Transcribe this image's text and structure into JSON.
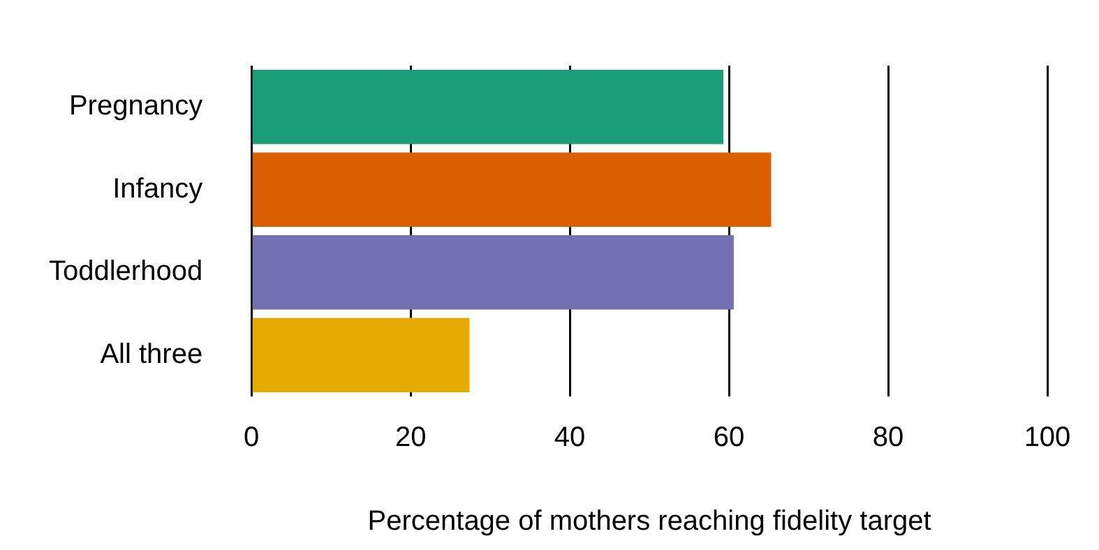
{
  "chart_data": {
    "type": "bar",
    "orientation": "horizontal",
    "categories": [
      "Pregnancy",
      "Infancy",
      "Toddlerhood",
      "All three"
    ],
    "values": [
      59.3,
      65.3,
      60.6,
      27.4
    ],
    "colors": [
      "#1b9e77",
      "#d95f02",
      "#7570b3",
      "#e6ab02"
    ],
    "xlabel": "Percentage of mothers reaching fidelity target",
    "xlim": [
      0,
      100
    ],
    "xticks": [
      0,
      20,
      40,
      60,
      80,
      100
    ],
    "grid": "x",
    "legend": false
  }
}
